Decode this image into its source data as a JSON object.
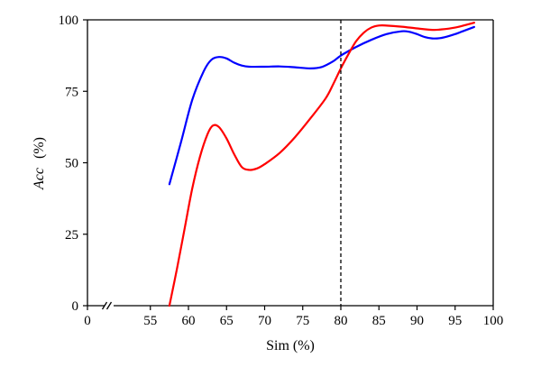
{
  "chart_data": {
    "type": "line",
    "title": "",
    "xlabel": "Sim (%)",
    "ylabel_italic": "Acc",
    "ylabel_unit": "(%)",
    "xlim": [
      0,
      100
    ],
    "ylim": [
      0,
      100
    ],
    "x_axis_break": true,
    "x_break_value": 50,
    "x_ticks": [
      0,
      55,
      60,
      65,
      70,
      75,
      80,
      85,
      90,
      95,
      100
    ],
    "y_ticks": [
      0,
      25,
      50,
      75,
      100
    ],
    "grid": false,
    "legend": "none",
    "reference_line": {
      "x": 80,
      "style": "dashed",
      "color": "#000000"
    },
    "series": [
      {
        "color": "#0000ff",
        "points": [
          [
            57.5,
            42.5
          ],
          [
            59,
            57
          ],
          [
            60.5,
            72
          ],
          [
            62,
            82
          ],
          [
            63,
            86
          ],
          [
            64,
            87
          ],
          [
            65,
            86.5
          ],
          [
            66,
            85
          ],
          [
            67,
            84
          ],
          [
            68,
            83.6
          ],
          [
            70,
            83.6
          ],
          [
            72,
            83.7
          ],
          [
            74,
            83.4
          ],
          [
            76,
            83
          ],
          [
            77.5,
            83.5
          ],
          [
            79,
            85.5
          ],
          [
            80,
            87.5
          ],
          [
            82,
            90.5
          ],
          [
            84,
            93
          ],
          [
            86,
            95
          ],
          [
            88,
            96
          ],
          [
            89,
            95.8
          ],
          [
            90,
            95
          ],
          [
            91,
            94
          ],
          [
            92,
            93.5
          ],
          [
            93,
            93.6
          ],
          [
            94,
            94.2
          ],
          [
            95,
            95
          ],
          [
            96,
            96
          ],
          [
            97.5,
            97.5
          ]
        ]
      },
      {
        "color": "#ff0000",
        "points": [
          [
            57.5,
            0
          ],
          [
            58.5,
            13
          ],
          [
            59.5,
            27
          ],
          [
            60.5,
            41
          ],
          [
            61.5,
            52
          ],
          [
            62.5,
            60
          ],
          [
            63.2,
            63
          ],
          [
            64,
            62.5
          ],
          [
            65,
            58.5
          ],
          [
            66,
            53
          ],
          [
            67,
            48.5
          ],
          [
            68,
            47.5
          ],
          [
            69,
            48
          ],
          [
            70,
            49.5
          ],
          [
            72,
            53.5
          ],
          [
            74,
            59
          ],
          [
            76,
            65.5
          ],
          [
            78,
            72.5
          ],
          [
            79,
            77.5
          ],
          [
            80,
            83
          ],
          [
            81,
            88
          ],
          [
            82,
            92.5
          ],
          [
            83,
            95.5
          ],
          [
            84,
            97.3
          ],
          [
            85,
            98
          ],
          [
            86,
            98
          ],
          [
            88,
            97.6
          ],
          [
            90,
            97
          ],
          [
            92,
            96.5
          ],
          [
            93,
            96.6
          ],
          [
            95,
            97.3
          ],
          [
            97.5,
            99
          ]
        ]
      }
    ]
  }
}
